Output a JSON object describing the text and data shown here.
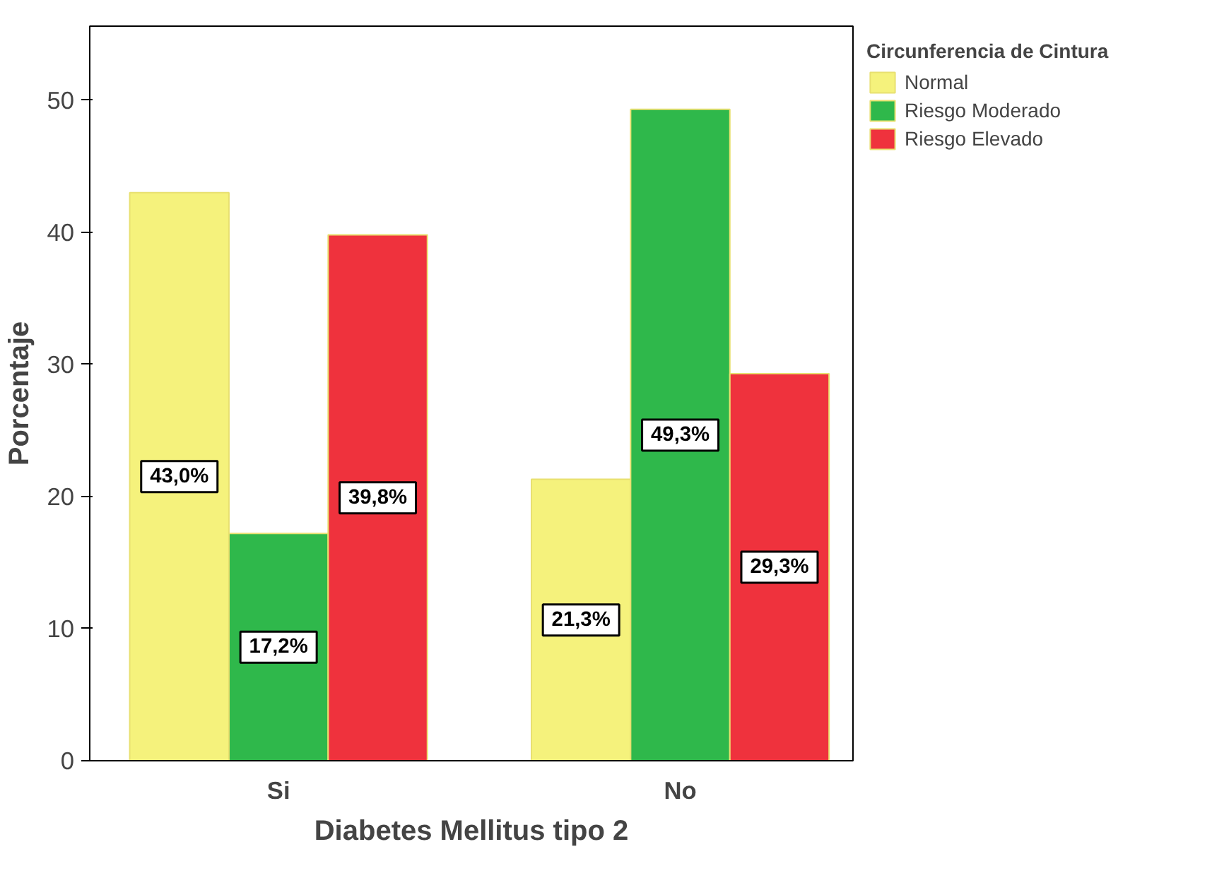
{
  "chart_data": {
    "type": "bar",
    "xlabel": "Diabetes Mellitus tipo 2",
    "ylabel": "Porcentaje",
    "legend_title": "Circunferencia de Cintura",
    "categories": [
      "Si",
      "No"
    ],
    "series": [
      {
        "name": "Normal",
        "color": "#f5f27c",
        "values": [
          43.0,
          21.3
        ],
        "value_labels": [
          "43,0%",
          "21,3%"
        ]
      },
      {
        "name": "Riesgo Moderado",
        "color": "#2fb84b",
        "values": [
          17.2,
          49.3
        ],
        "value_labels": [
          "17,2%",
          "49,3%"
        ]
      },
      {
        "name": "Riesgo Elevado",
        "color": "#ef323d",
        "values": [
          39.8,
          29.3
        ],
        "value_labels": [
          "39,8%",
          "29,3%"
        ]
      }
    ],
    "ylim": [
      0,
      55.6
    ],
    "yticks": [
      0,
      10,
      20,
      30,
      40,
      50
    ],
    "grid": false,
    "legend": "top right"
  }
}
